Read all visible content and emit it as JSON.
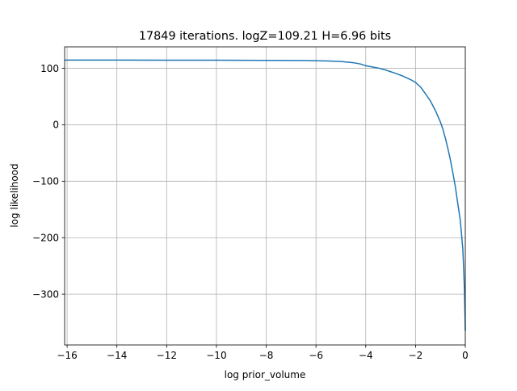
{
  "chart_data": {
    "type": "line",
    "title": "17849 iterations. logZ=109.21 H=6.96 bits",
    "xlabel": "log prior_volume",
    "ylabel": "log likelihood",
    "xlim": [
      -16.1,
      0.0
    ],
    "ylim": [
      -390,
      138
    ],
    "xticks": [
      -16,
      -14,
      -12,
      -10,
      -8,
      -6,
      -4,
      -2,
      0
    ],
    "xtick_labels": [
      "−16",
      "−14",
      "−12",
      "−10",
      "−8",
      "−6",
      "−4",
      "−2",
      "0"
    ],
    "yticks": [
      100,
      0,
      -100,
      -200,
      -300
    ],
    "ytick_labels": [
      "100",
      "0",
      "−100",
      "−200",
      "−300"
    ],
    "grid": true,
    "legend": "none",
    "series": [
      {
        "color": "#1f77b4",
        "x": [
          -16.1,
          -14,
          -12,
          -10,
          -8,
          -6.5,
          -5.5,
          -5.0,
          -4.5,
          -4.2,
          -4.0,
          -3.8,
          -3.5,
          -3.2,
          -3.0,
          -2.8,
          -2.5,
          -2.2,
          -2.0,
          -1.8,
          -1.6,
          -1.4,
          -1.2,
          -1.0,
          -0.9,
          -0.8,
          -0.7,
          -0.6,
          -0.5,
          -0.4,
          -0.3,
          -0.2,
          -0.15,
          -0.1,
          -0.06,
          -0.03,
          0.0
        ],
        "y": [
          114.5,
          114.5,
          114.4,
          114.3,
          114.1,
          113.8,
          113,
          112,
          110,
          107.5,
          104.5,
          103,
          100.5,
          97,
          94,
          91,
          86,
          80,
          75,
          67,
          55,
          42,
          25,
          5,
          -8,
          -24,
          -42,
          -62,
          -85,
          -110,
          -140,
          -170,
          -195,
          -220,
          -260,
          -300,
          -365
        ]
      }
    ]
  }
}
